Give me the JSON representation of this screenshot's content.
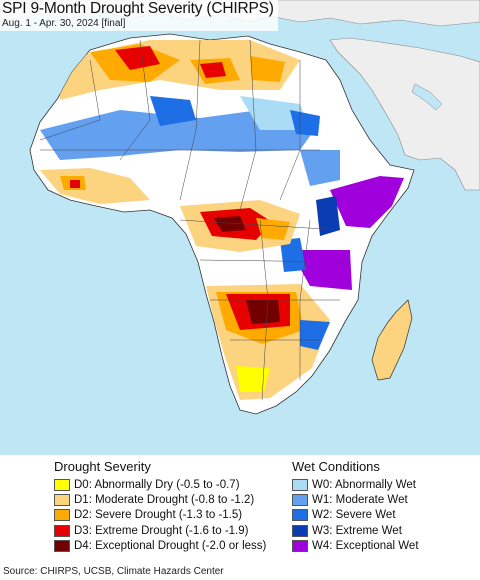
{
  "title": "SPI 9-Month Drought Severity (CHIRPS)",
  "subtitle": "Aug. 1 - Apr. 30, 2024 [final]",
  "map": {
    "ocean_color": "#bfe6f5",
    "out_of_scope_color": "#eeeeee",
    "normal_color": "#ffffff",
    "border_color": "#333333"
  },
  "legend": {
    "drought_title": "Drought Severity",
    "drought_items": [
      {
        "label": "D0: Abnormally Dry (-0.5 to -0.7)",
        "color": "#ffff00"
      },
      {
        "label": "D1: Moderate Drought (-0.8 to -1.2)",
        "color": "#fcd37f"
      },
      {
        "label": "D2: Severe Drought (-1.3 to -1.5)",
        "color": "#ffaa00"
      },
      {
        "label": "D3: Extreme Drought (-1.6 to -1.9)",
        "color": "#e60000"
      },
      {
        "label": "D4: Exceptional Drought (-2.0 or less)",
        "color": "#730000"
      }
    ],
    "wet_title": "Wet Conditions",
    "wet_items": [
      {
        "label": "W0: Abnormally Wet",
        "color": "#aadcf5"
      },
      {
        "label": "W1: Moderate Wet",
        "color": "#64a0f0"
      },
      {
        "label": "W2: Severe Wet",
        "color": "#1e6ee6"
      },
      {
        "label": "W3: Extreme Wet",
        "color": "#0a3cb4"
      },
      {
        "label": "W4: Exceptional Wet",
        "color": "#a000dc"
      }
    ]
  },
  "source": "Source: CHIRPS, UCSB, Climate Hazards Center"
}
